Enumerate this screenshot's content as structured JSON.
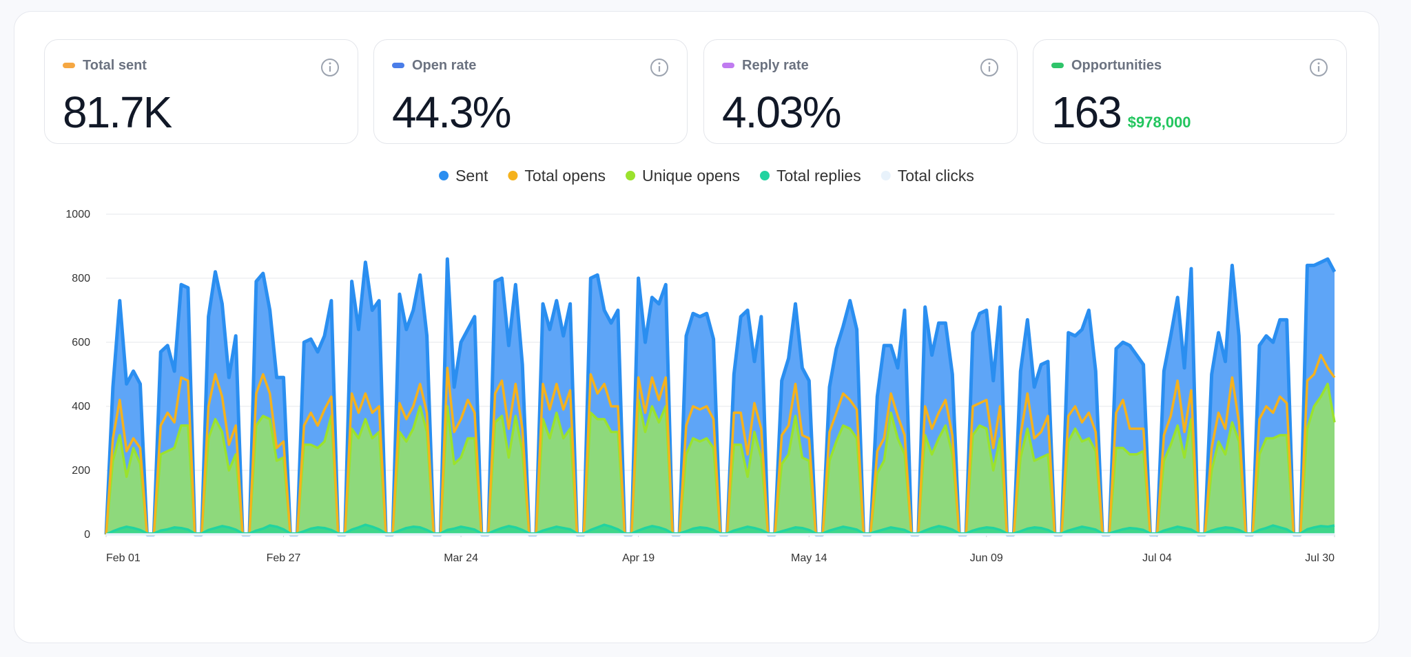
{
  "cards": [
    {
      "label": "Total sent",
      "value": "81.7K",
      "color": "#f5a742"
    },
    {
      "label": "Open rate",
      "value": "44.3%",
      "color": "#4a7de8"
    },
    {
      "label": "Reply rate",
      "value": "4.03%",
      "color": "#c07bf0"
    },
    {
      "label": "Opportunities",
      "value": "163",
      "sub": "$978,000",
      "color": "#2fc46a"
    }
  ],
  "chart_data": {
    "type": "area",
    "x": [
      0,
      1,
      2,
      3,
      4,
      5,
      6,
      7,
      8,
      9,
      10,
      11,
      12,
      13,
      14,
      15,
      16,
      17,
      18,
      19,
      20,
      21,
      22,
      23,
      24,
      25,
      26,
      27,
      28,
      29,
      30,
      31,
      32,
      33,
      34,
      35,
      36,
      37,
      38,
      39,
      40,
      41,
      42,
      43,
      44,
      45,
      46,
      47,
      48,
      49,
      50,
      51,
      52,
      53,
      54,
      55,
      56,
      57,
      58,
      59,
      60,
      61,
      62,
      63,
      64,
      65,
      66,
      67,
      68,
      69,
      70,
      71,
      72,
      73,
      74,
      75,
      76,
      77,
      78,
      79,
      80,
      81,
      82,
      83,
      84,
      85,
      86,
      87,
      88,
      89,
      90,
      91,
      92,
      93,
      94,
      95,
      96,
      97,
      98,
      99,
      100,
      101,
      102,
      103,
      104,
      105,
      106,
      107,
      108,
      109,
      110,
      111,
      112,
      113,
      114,
      115,
      116,
      117,
      118,
      119,
      120,
      121,
      122,
      123,
      124,
      125,
      126,
      127,
      128,
      129,
      130,
      131,
      132,
      133,
      134,
      135,
      136,
      137,
      138,
      139,
      140,
      141,
      142,
      143,
      144,
      145,
      146,
      147,
      148,
      149,
      150,
      151,
      152,
      153,
      154,
      155,
      156,
      157,
      158,
      159,
      160,
      161,
      162,
      163,
      164,
      165,
      166,
      167,
      168,
      169,
      170,
      171,
      172,
      173,
      174,
      175,
      176,
      177,
      178,
      179,
      180
    ],
    "xlim": [
      0,
      180
    ],
    "xticks": [
      {
        "value": 0,
        "label": "Feb 01"
      },
      {
        "value": 26,
        "label": "Feb 27"
      },
      {
        "value": 52,
        "label": "Mar 24"
      },
      {
        "value": 78,
        "label": "Apr 19"
      },
      {
        "value": 103,
        "label": "May 14"
      },
      {
        "value": 129,
        "label": "Jun 09"
      },
      {
        "value": 154,
        "label": "Jul 04"
      },
      {
        "value": 180,
        "label": "Jul 30"
      }
    ],
    "ylim": [
      0,
      1000
    ],
    "yticks": [
      0,
      200,
      400,
      600,
      800,
      1000
    ],
    "grid": true,
    "series": [
      {
        "name": "Sent",
        "color": "#2a8ef0",
        "fill": "#5ea5f7",
        "values": [
          0,
          460,
          730,
          470,
          510,
          470,
          0,
          0,
          570,
          590,
          510,
          780,
          770,
          0,
          0,
          680,
          820,
          720,
          490,
          620,
          0,
          0,
          790,
          815,
          700,
          490,
          490,
          0,
          0,
          600,
          610,
          570,
          620,
          730,
          0,
          0,
          790,
          640,
          850,
          700,
          730,
          0,
          0,
          750,
          640,
          700,
          810,
          620,
          0,
          0,
          860,
          460,
          600,
          640,
          680,
          0,
          0,
          790,
          800,
          590,
          780,
          530,
          0,
          0,
          720,
          640,
          730,
          620,
          720,
          0,
          0,
          800,
          810,
          700,
          660,
          700,
          0,
          0,
          800,
          600,
          740,
          720,
          780,
          0,
          0,
          620,
          690,
          680,
          690,
          610,
          0,
          0,
          500,
          680,
          700,
          540,
          680,
          0,
          0,
          480,
          550,
          720,
          520,
          480,
          0,
          0,
          460,
          580,
          650,
          730,
          640,
          0,
          0,
          430,
          590,
          590,
          520,
          700,
          0,
          0,
          710,
          560,
          660,
          660,
          500,
          0,
          0,
          630,
          690,
          700,
          480,
          710,
          0,
          0,
          510,
          670,
          460,
          530,
          540,
          0,
          0,
          630,
          620,
          640,
          700,
          510,
          0,
          0,
          580,
          600,
          590,
          560,
          530,
          0,
          0,
          510,
          620,
          740,
          520,
          830,
          0,
          0,
          500,
          630,
          540,
          840,
          620,
          0,
          0,
          590,
          620,
          600,
          670,
          670,
          0,
          0,
          840,
          840,
          850,
          860,
          820
        ]
      },
      {
        "name": "Total opens",
        "color": "#f5b21d",
        "values": [
          0,
          300,
          420,
          260,
          300,
          270,
          0,
          0,
          340,
          380,
          350,
          490,
          480,
          0,
          0,
          400,
          500,
          430,
          280,
          340,
          0,
          0,
          440,
          500,
          440,
          270,
          290,
          0,
          0,
          340,
          380,
          340,
          390,
          430,
          0,
          0,
          440,
          380,
          440,
          380,
          400,
          0,
          0,
          410,
          360,
          400,
          470,
          380,
          0,
          0,
          520,
          320,
          360,
          420,
          380,
          0,
          0,
          440,
          480,
          330,
          470,
          330,
          0,
          0,
          470,
          390,
          470,
          390,
          450,
          0,
          0,
          500,
          440,
          470,
          400,
          400,
          0,
          0,
          490,
          380,
          490,
          420,
          490,
          0,
          0,
          340,
          400,
          390,
          400,
          360,
          0,
          0,
          380,
          380,
          250,
          410,
          330,
          0,
          0,
          310,
          340,
          470,
          310,
          300,
          0,
          0,
          320,
          380,
          440,
          420,
          390,
          0,
          0,
          260,
          300,
          440,
          370,
          310,
          0,
          0,
          400,
          330,
          380,
          420,
          310,
          0,
          0,
          400,
          410,
          420,
          270,
          400,
          0,
          0,
          310,
          440,
          300,
          320,
          370,
          0,
          0,
          370,
          400,
          350,
          380,
          320,
          0,
          0,
          380,
          420,
          330,
          330,
          330,
          0,
          0,
          310,
          370,
          480,
          320,
          450,
          0,
          0,
          270,
          380,
          330,
          490,
          350,
          0,
          0,
          360,
          400,
          380,
          430,
          410,
          0,
          0,
          480,
          500,
          560,
          520,
          490
        ]
      },
      {
        "name": "Unique opens",
        "color": "#9be22d",
        "fill": "#8ed97c",
        "values": [
          0,
          230,
          310,
          180,
          270,
          220,
          0,
          0,
          250,
          260,
          270,
          340,
          340,
          0,
          0,
          300,
          360,
          320,
          200,
          250,
          0,
          0,
          340,
          370,
          360,
          230,
          240,
          0,
          0,
          280,
          280,
          270,
          290,
          370,
          0,
          0,
          330,
          300,
          360,
          300,
          320,
          0,
          0,
          320,
          290,
          330,
          400,
          320,
          0,
          0,
          400,
          220,
          240,
          300,
          300,
          0,
          0,
          350,
          370,
          240,
          370,
          260,
          0,
          0,
          360,
          300,
          380,
          300,
          330,
          0,
          0,
          380,
          360,
          360,
          320,
          320,
          0,
          0,
          420,
          320,
          400,
          350,
          400,
          0,
          0,
          250,
          300,
          290,
          300,
          270,
          0,
          0,
          280,
          280,
          180,
          320,
          240,
          0,
          0,
          220,
          250,
          370,
          240,
          230,
          0,
          0,
          230,
          290,
          340,
          330,
          300,
          0,
          0,
          190,
          230,
          380,
          300,
          250,
          0,
          0,
          310,
          250,
          300,
          340,
          250,
          0,
          0,
          310,
          340,
          330,
          200,
          300,
          0,
          0,
          240,
          330,
          230,
          240,
          250,
          0,
          0,
          290,
          330,
          290,
          300,
          260,
          0,
          0,
          270,
          270,
          250,
          250,
          260,
          0,
          0,
          230,
          280,
          340,
          240,
          360,
          0,
          0,
          200,
          290,
          250,
          350,
          290,
          0,
          0,
          250,
          300,
          300,
          310,
          310,
          0,
          0,
          330,
          400,
          430,
          470,
          350
        ]
      },
      {
        "name": "Total replies",
        "color": "#22d3a0",
        "fill": "#3fd68a",
        "values": [
          0,
          10,
          18,
          24,
          20,
          14,
          3,
          3,
          12,
          16,
          22,
          20,
          15,
          3,
          3,
          14,
          20,
          26,
          22,
          15,
          3,
          3,
          12,
          18,
          28,
          24,
          16,
          3,
          3,
          10,
          18,
          22,
          20,
          14,
          3,
          3,
          15,
          22,
          30,
          24,
          16,
          3,
          3,
          12,
          20,
          24,
          22,
          14,
          3,
          3,
          14,
          18,
          24,
          20,
          15,
          3,
          3,
          12,
          20,
          26,
          22,
          14,
          3,
          3,
          12,
          18,
          24,
          20,
          16,
          3,
          3,
          14,
          22,
          30,
          24,
          16,
          3,
          3,
          12,
          20,
          26,
          22,
          15,
          3,
          3,
          10,
          18,
          22,
          20,
          14,
          3,
          3,
          12,
          18,
          24,
          20,
          14,
          3,
          3,
          10,
          16,
          22,
          20,
          14,
          3,
          3,
          12,
          18,
          24,
          20,
          15,
          3,
          3,
          10,
          16,
          22,
          18,
          14,
          3,
          3,
          12,
          20,
          26,
          22,
          15,
          3,
          3,
          12,
          18,
          22,
          20,
          14,
          3,
          3,
          10,
          18,
          22,
          20,
          14,
          3,
          3,
          12,
          18,
          24,
          20,
          15,
          3,
          3,
          10,
          16,
          20,
          18,
          14,
          3,
          3,
          12,
          18,
          24,
          20,
          15,
          3,
          3,
          12,
          18,
          22,
          20,
          14,
          3,
          3,
          14,
          20,
          28,
          22,
          16,
          3,
          3,
          16,
          22,
          26,
          24,
          28
        ]
      },
      {
        "name": "Total clicks",
        "color": "#e8f2fb",
        "values": [
          0,
          0,
          0,
          0,
          0,
          0,
          0,
          0,
          0,
          0,
          0,
          0,
          0,
          0,
          0,
          0,
          0,
          0,
          0,
          0,
          0,
          0,
          0,
          0,
          0,
          0,
          0,
          0,
          0,
          0,
          0,
          0,
          0,
          0,
          0,
          0,
          0,
          0,
          0,
          0,
          0,
          0,
          0,
          0,
          0,
          0,
          0,
          0,
          0,
          0,
          0,
          0,
          0,
          0,
          0,
          0,
          0,
          0,
          0,
          0,
          0,
          0,
          0,
          0,
          0,
          0,
          0,
          0,
          0,
          0,
          0,
          0,
          0,
          0,
          0,
          0,
          0,
          0,
          0,
          0,
          0,
          0,
          0,
          0,
          0,
          0,
          0,
          0,
          0,
          0,
          0,
          0,
          0,
          0,
          0,
          0,
          0,
          0,
          0,
          0,
          0,
          0,
          0,
          0,
          0,
          0,
          0,
          0,
          0,
          0,
          0,
          0,
          0,
          0,
          0,
          0,
          0,
          0,
          0,
          0,
          0,
          0,
          0,
          0,
          0,
          0,
          0,
          0,
          0,
          0,
          0,
          0,
          0,
          0,
          0,
          0,
          0,
          0,
          0,
          0,
          0,
          0,
          0,
          0,
          0,
          0,
          0,
          0,
          0,
          0,
          0,
          0,
          0,
          0,
          0,
          0,
          0,
          0,
          0,
          0,
          0,
          0,
          0,
          0,
          0,
          0,
          0,
          0,
          0,
          0,
          0,
          0,
          0,
          0,
          0,
          0,
          0,
          0,
          0,
          0,
          0
        ]
      }
    ]
  }
}
